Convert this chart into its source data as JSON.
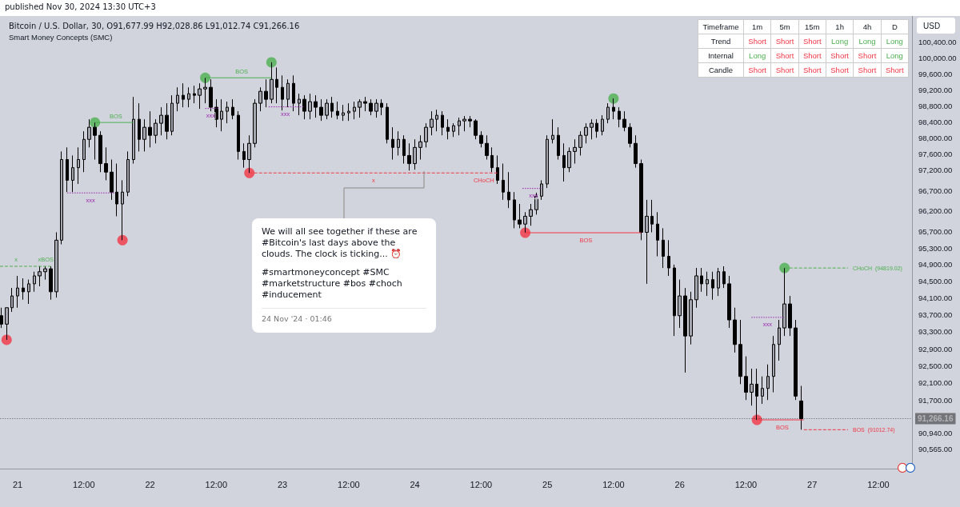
{
  "chart_data": [
    {
      "type": "candlestick",
      "title": "Bitcoin / U.S. Dollar, 30, O91,677.99 H92,028.86 L91,012.74 C91,266.16",
      "subtitle": "Smart Money Concepts (SMC)",
      "ylabel": "USD",
      "log": "y",
      "annotations": [
        "published Nov 30, 2024 13:30 UTC+3",
        {
          "text": "x",
          "x": "2024-11-20T23:42",
          "y": 94860
        },
        {
          "text": "xBOS",
          "x": "2024-11-21T05:06",
          "y": 94860
        },
        {
          "text": "BOS",
          "x": "2024-11-21T17:48",
          "y": 98380
        },
        {
          "text": "xxx",
          "x": "2024-11-21T13:12",
          "y": 96640
        },
        {
          "text": "BOS",
          "x": "2024-11-22T16:36",
          "y": 99500
        },
        {
          "text": "xxx",
          "x": "2024-11-22T11:00",
          "y": 98730
        },
        {
          "text": "xxx",
          "x": "2024-11-23T00:30",
          "y": 98770
        },
        {
          "text": "x",
          "x": "2024-11-23T16:30",
          "y": 97130
        },
        {
          "text": "CHoCH",
          "x": "2024-11-24T12:30",
          "y": 97130
        },
        {
          "text": "xxx",
          "x": "2024-11-24T21:30",
          "y": 96750
        },
        {
          "text": "BOS",
          "x": "2024-11-25T07:00",
          "y": 95670
        },
        {
          "text": "xxx",
          "x": "2024-11-26T15:54",
          "y": 93640
        },
        {
          "text": "BOS",
          "x": "2024-11-26T18:36",
          "y": 91240
        }
      ],
      "xlim": [
        "2024-11-20T20:48",
        "2024-11-27T18:06"
      ],
      "xticks": [
        {
          "value": "2024-11-21T00:00",
          "label": "21"
        },
        {
          "value": "2024-11-21T12:00",
          "label": "12:00"
        },
        {
          "value": "2024-11-22T00:00",
          "label": "22"
        },
        {
          "value": "2024-11-22T12:00",
          "label": "12:00"
        },
        {
          "value": "2024-11-23T00:00",
          "label": "23"
        },
        {
          "value": "2024-11-23T12:00",
          "label": "12:00"
        },
        {
          "value": "2024-11-24T00:00",
          "label": "24"
        },
        {
          "value": "2024-11-24T12:00",
          "label": "12:00"
        },
        {
          "value": "2024-11-25T00:00",
          "label": "25"
        },
        {
          "value": "2024-11-25T12:00",
          "label": "12:00"
        },
        {
          "value": "2024-11-26T00:00",
          "label": "26"
        },
        {
          "value": "2024-11-26T12:00",
          "label": "12:00"
        },
        {
          "value": "2024-11-27T00:00",
          "label": "27"
        },
        {
          "value": "2024-11-27T12:00",
          "label": "12:00"
        }
      ],
      "ylim": [
        90120,
        101070
      ],
      "yticks": [
        {
          "value": 100400,
          "label": "100,400.00"
        },
        {
          "value": 100000,
          "label": "100,000.00"
        },
        {
          "value": 99600,
          "label": "99,600.00"
        },
        {
          "value": 99200,
          "label": "99,200.00"
        },
        {
          "value": 98800,
          "label": "98,800.00"
        },
        {
          "value": 98400,
          "label": "98,400.00"
        },
        {
          "value": 98000,
          "label": "98,000.00"
        },
        {
          "value": 97600,
          "label": "97,600.00"
        },
        {
          "value": 97200,
          "label": "97,200.00"
        },
        {
          "value": 96700,
          "label": "96,700.00"
        },
        {
          "value": 96200,
          "label": "96,200.00"
        },
        {
          "value": 95700,
          "label": "95,700.00"
        },
        {
          "value": 95300,
          "label": "95,300.00"
        },
        {
          "value": 94900,
          "label": "94,900.00"
        },
        {
          "value": 94500,
          "label": "94,500.00"
        },
        {
          "value": 94100,
          "label": "94,100.00"
        },
        {
          "value": 93700,
          "label": "93,700.00"
        },
        {
          "value": 93300,
          "label": "93,300.00"
        },
        {
          "value": 92900,
          "label": "92,900.00"
        },
        {
          "value": 92500,
          "label": "92,500.00"
        },
        {
          "value": 92100,
          "label": "92,100.00"
        },
        {
          "value": 91700,
          "label": "91,700.00"
        },
        {
          "value": 90940,
          "label": "90,940.00"
        },
        {
          "value": 90565,
          "label": "90,565.00"
        }
      ],
      "ref_lines": [
        {
          "axis": "y",
          "value": 91266.16,
          "label": "91,266.16"
        }
      ],
      "x": [
        "2024-11-20T21:00",
        "2024-11-20T22:00",
        "2024-11-20T23:00",
        "2024-11-21T00:00",
        "2024-11-21T01:00",
        "2024-11-21T02:00",
        "2024-11-21T03:00",
        "2024-11-21T04:00",
        "2024-11-21T05:00",
        "2024-11-21T06:00",
        "2024-11-21T07:00",
        "2024-11-21T08:00",
        "2024-11-21T09:00",
        "2024-11-21T10:00",
        "2024-11-21T11:00",
        "2024-11-21T12:00",
        "2024-11-21T13:00",
        "2024-11-21T14:00",
        "2024-11-21T15:00",
        "2024-11-21T16:00",
        "2024-11-21T17:00",
        "2024-11-21T18:00",
        "2024-11-21T19:00",
        "2024-11-21T20:00",
        "2024-11-21T21:00",
        "2024-11-21T22:00",
        "2024-11-21T23:00",
        "2024-11-22T00:00",
        "2024-11-22T01:00",
        "2024-11-22T02:00",
        "2024-11-22T03:00",
        "2024-11-22T04:00",
        "2024-11-22T05:00",
        "2024-11-22T06:00",
        "2024-11-22T07:00",
        "2024-11-22T08:00",
        "2024-11-22T09:00",
        "2024-11-22T10:00",
        "2024-11-22T11:00",
        "2024-11-22T12:00",
        "2024-11-22T13:00",
        "2024-11-22T14:00",
        "2024-11-22T15:00",
        "2024-11-22T16:00",
        "2024-11-22T17:00",
        "2024-11-22T18:00",
        "2024-11-22T19:00",
        "2024-11-22T20:00",
        "2024-11-22T21:00",
        "2024-11-22T22:00",
        "2024-11-22T23:00",
        "2024-11-23T00:00",
        "2024-11-23T01:00",
        "2024-11-23T02:00",
        "2024-11-23T03:00",
        "2024-11-23T04:00",
        "2024-11-23T05:00",
        "2024-11-23T06:00",
        "2024-11-23T07:00",
        "2024-11-23T08:00",
        "2024-11-23T09:00",
        "2024-11-23T10:00",
        "2024-11-23T11:00",
        "2024-11-23T12:00",
        "2024-11-23T13:00",
        "2024-11-23T14:00",
        "2024-11-23T15:00",
        "2024-11-23T16:00",
        "2024-11-23T17:00",
        "2024-11-23T18:00",
        "2024-11-23T19:00",
        "2024-11-23T20:00",
        "2024-11-23T21:00",
        "2024-11-23T22:00",
        "2024-11-23T23:00",
        "2024-11-24T00:00",
        "2024-11-24T01:00",
        "2024-11-24T02:00",
        "2024-11-24T03:00",
        "2024-11-24T04:00",
        "2024-11-24T05:00",
        "2024-11-24T06:00",
        "2024-11-24T07:00",
        "2024-11-24T08:00",
        "2024-11-24T09:00",
        "2024-11-24T10:00",
        "2024-11-24T11:00",
        "2024-11-24T12:00",
        "2024-11-24T13:00",
        "2024-11-24T14:00",
        "2024-11-24T15:00",
        "2024-11-24T16:00",
        "2024-11-24T17:00",
        "2024-11-24T18:00",
        "2024-11-24T19:00",
        "2024-11-24T20:00",
        "2024-11-24T21:00",
        "2024-11-24T22:00",
        "2024-11-24T23:00",
        "2024-11-25T00:00",
        "2024-11-25T01:00",
        "2024-11-25T02:00",
        "2024-11-25T03:00",
        "2024-11-25T04:00",
        "2024-11-25T05:00",
        "2024-11-25T06:00",
        "2024-11-25T07:00",
        "2024-11-25T08:00",
        "2024-11-25T09:00",
        "2024-11-25T10:00",
        "2024-11-25T11:00",
        "2024-11-25T12:00",
        "2024-11-25T13:00",
        "2024-11-25T14:00",
        "2024-11-25T15:00",
        "2024-11-25T16:00",
        "2024-11-25T17:00",
        "2024-11-25T18:00",
        "2024-11-25T19:00",
        "2024-11-25T20:00",
        "2024-11-25T21:00",
        "2024-11-25T22:00",
        "2024-11-25T23:00",
        "2024-11-26T00:00",
        "2024-11-26T01:00",
        "2024-11-26T02:00",
        "2024-11-26T03:00",
        "2024-11-26T04:00",
        "2024-11-26T05:00",
        "2024-11-26T06:00",
        "2024-11-26T07:00",
        "2024-11-26T08:00",
        "2024-11-26T09:00",
        "2024-11-26T10:00",
        "2024-11-26T11:00",
        "2024-11-26T12:00",
        "2024-11-26T13:00",
        "2024-11-26T14:00",
        "2024-11-26T15:00",
        "2024-11-26T16:00",
        "2024-11-26T17:00",
        "2024-11-26T18:00",
        "2024-11-26T19:00",
        "2024-11-26T20:00",
        "2024-11-26T21:00",
        "2024-11-26T22:00"
      ],
      "ohlc": [
        [
          93680,
          93870,
          93390,
          93480
        ],
        [
          93480,
          93870,
          93110,
          93870
        ],
        [
          93870,
          94340,
          93770,
          94150
        ],
        [
          94150,
          94630,
          93870,
          94340
        ],
        [
          94340,
          94570,
          94060,
          94250
        ],
        [
          94250,
          94540,
          93960,
          94440
        ],
        [
          94440,
          94730,
          94250,
          94630
        ],
        [
          94630,
          94860,
          94380,
          94730
        ],
        [
          94730,
          94860,
          94540,
          94800
        ],
        [
          94800,
          94860,
          94060,
          94250
        ],
        [
          94250,
          95680,
          94110,
          95490
        ],
        [
          95490,
          97660,
          95390,
          97460
        ],
        [
          97460,
          97760,
          96660,
          96950
        ],
        [
          96950,
          97560,
          96660,
          97260
        ],
        [
          97260,
          97760,
          96860,
          97460
        ],
        [
          97460,
          98160,
          97150,
          97960
        ],
        [
          97960,
          98460,
          97760,
          98260
        ],
        [
          98260,
          98380,
          97460,
          98060
        ],
        [
          98060,
          98160,
          97150,
          97360
        ],
        [
          97360,
          97760,
          96950,
          97150
        ],
        [
          97150,
          97460,
          96470,
          96660
        ],
        [
          96660,
          97360,
          96070,
          96370
        ],
        [
          96370,
          96950,
          95490,
          96660
        ],
        [
          96660,
          97660,
          96560,
          97460
        ],
        [
          97460,
          99020,
          97360,
          98460
        ],
        [
          98460,
          98860,
          97660,
          97960
        ],
        [
          97960,
          98460,
          97660,
          98260
        ],
        [
          98260,
          98660,
          97760,
          98060
        ],
        [
          98060,
          98460,
          97860,
          98360
        ],
        [
          98360,
          98760,
          98060,
          98560
        ],
        [
          98560,
          98860,
          97960,
          98160
        ],
        [
          98160,
          99060,
          98060,
          98860
        ],
        [
          98860,
          99260,
          98660,
          99060
        ],
        [
          99060,
          99360,
          98760,
          98960
        ],
        [
          98960,
          99260,
          98760,
          99100
        ],
        [
          99100,
          99300,
          98860,
          99060
        ],
        [
          99060,
          99360,
          98720,
          99220
        ],
        [
          99220,
          99500,
          98860,
          99260
        ],
        [
          99260,
          99460,
          98660,
          98760
        ],
        [
          98760,
          98960,
          98260,
          98460
        ],
        [
          98460,
          98960,
          98160,
          98660
        ],
        [
          98660,
          98900,
          98360,
          98760
        ],
        [
          98760,
          98960,
          98460,
          98560
        ],
        [
          98560,
          98660,
          97460,
          97660
        ],
        [
          97660,
          97860,
          97260,
          97460
        ],
        [
          97460,
          98060,
          97130,
          97860
        ],
        [
          97860,
          98960,
          97760,
          98860
        ],
        [
          98860,
          99260,
          98660,
          99160
        ],
        [
          99160,
          99460,
          98760,
          98960
        ],
        [
          98960,
          99890,
          98860,
          99460
        ],
        [
          99460,
          99760,
          98860,
          99260
        ],
        [
          99260,
          99560,
          98660,
          98960
        ],
        [
          98960,
          99460,
          98760,
          99360
        ],
        [
          99360,
          99560,
          98660,
          98860
        ],
        [
          98860,
          99100,
          98560,
          98960
        ],
        [
          98960,
          99060,
          98460,
          98660
        ],
        [
          98660,
          99100,
          98460,
          98900
        ],
        [
          98900,
          99060,
          98500,
          98760
        ],
        [
          98760,
          98960,
          98420,
          98560
        ],
        [
          98560,
          98960,
          98460,
          98860
        ],
        [
          98860,
          99020,
          98500,
          98660
        ],
        [
          98660,
          98900,
          98460,
          98560
        ],
        [
          98560,
          98820,
          98420,
          98620
        ],
        [
          98620,
          98860,
          98420,
          98660
        ],
        [
          98660,
          98900,
          98460,
          98760
        ],
        [
          98760,
          98960,
          98500,
          98900
        ],
        [
          98900,
          99020,
          98660,
          98860
        ],
        [
          98860,
          98960,
          98560,
          98660
        ],
        [
          98660,
          98960,
          98500,
          98860
        ],
        [
          98860,
          98960,
          98560,
          98760
        ],
        [
          98760,
          98860,
          97860,
          97960
        ],
        [
          97960,
          98260,
          97460,
          97760
        ],
        [
          97760,
          98160,
          97560,
          97960
        ],
        [
          97960,
          98060,
          97360,
          97560
        ],
        [
          97560,
          97860,
          97190,
          97360
        ],
        [
          97360,
          97960,
          97210,
          97760
        ],
        [
          97760,
          98060,
          97460,
          97900
        ],
        [
          97900,
          98360,
          97760,
          98260
        ],
        [
          98260,
          98660,
          98060,
          98460
        ],
        [
          98460,
          98700,
          98160,
          98560
        ],
        [
          98560,
          98660,
          98060,
          98260
        ],
        [
          98260,
          98460,
          97960,
          98160
        ],
        [
          98160,
          98360,
          98020,
          98300
        ],
        [
          98300,
          98500,
          98060,
          98420
        ],
        [
          98420,
          98540,
          98160,
          98460
        ],
        [
          98460,
          98540,
          98260,
          98420
        ],
        [
          98420,
          98460,
          97960,
          98060
        ],
        [
          98060,
          98160,
          97760,
          97860
        ],
        [
          97860,
          98060,
          97460,
          97560
        ],
        [
          97560,
          97760,
          97150,
          97260
        ],
        [
          97260,
          97560,
          96860,
          96950
        ],
        [
          96950,
          97360,
          96470,
          96660
        ],
        [
          96660,
          97150,
          96270,
          96470
        ],
        [
          96470,
          96660,
          95780,
          95980
        ],
        [
          95980,
          96370,
          95780,
          95880
        ],
        [
          95880,
          96170,
          95670,
          96070
        ],
        [
          96070,
          96370,
          95840,
          96230
        ],
        [
          96230,
          96660,
          96110,
          96560
        ],
        [
          96560,
          96950,
          96470,
          96860
        ],
        [
          96860,
          98060,
          96760,
          97960
        ],
        [
          97960,
          98460,
          97860,
          98060
        ],
        [
          98060,
          98260,
          97460,
          97560
        ],
        [
          97560,
          97860,
          96920,
          97260
        ],
        [
          97260,
          97760,
          97150,
          97660
        ],
        [
          97660,
          97960,
          97360,
          97760
        ],
        [
          97760,
          98160,
          97560,
          98060
        ],
        [
          98060,
          98360,
          97860,
          98260
        ],
        [
          98260,
          98460,
          97960,
          98360
        ],
        [
          98360,
          98460,
          98000,
          98160
        ],
        [
          98160,
          98560,
          98060,
          98460
        ],
        [
          98460,
          98860,
          98360,
          98760
        ],
        [
          98760,
          98980,
          98460,
          98660
        ],
        [
          98660,
          98760,
          98260,
          98460
        ],
        [
          98460,
          98660,
          98160,
          98260
        ],
        [
          98260,
          98360,
          97760,
          97860
        ],
        [
          97860,
          98060,
          97260,
          97360
        ],
        [
          97360,
          97460,
          95490,
          95680
        ],
        [
          95680,
          96470,
          94440,
          96070
        ],
        [
          96070,
          96470,
          95680,
          95880
        ],
        [
          95880,
          96170,
          95100,
          95490
        ],
        [
          95490,
          95780,
          94820,
          95100
        ],
        [
          95100,
          95490,
          94630,
          94820
        ],
        [
          94820,
          94900,
          93200,
          93680
        ],
        [
          93680,
          94540,
          93390,
          94150
        ],
        [
          94150,
          94340,
          92340,
          93200
        ],
        [
          93200,
          94250,
          93000,
          94060
        ],
        [
          94060,
          94820,
          93870,
          94630
        ],
        [
          94630,
          94820,
          94250,
          94440
        ],
        [
          94440,
          94730,
          94150,
          94540
        ],
        [
          94540,
          94730,
          94060,
          94340
        ],
        [
          94340,
          94820,
          94150,
          94730
        ],
        [
          94730,
          94860,
          94340,
          94440
        ],
        [
          94440,
          94630,
          93390,
          93580
        ],
        [
          93580,
          93870,
          92810,
          93000
        ],
        [
          93000,
          93580,
          92070,
          92250
        ],
        [
          92250,
          92720,
          91700,
          91880
        ],
        [
          91880,
          92430,
          91570,
          92070
        ],
        [
          92070,
          92430,
          91240,
          91790
        ],
        [
          91790,
          92250,
          91610,
          91970
        ],
        [
          91970,
          92530,
          91700,
          92250
        ],
        [
          92250,
          93200,
          91880,
          93000
        ],
        [
          93000,
          93580,
          92620,
          93390
        ],
        [
          93390,
          94819.02,
          93200,
          93960
        ],
        [
          93960,
          94150,
          93200,
          93390
        ],
        [
          93390,
          93580,
          91700,
          91790
        ],
        [
          91677.99,
          92028.86,
          91012.74,
          91266.16
        ]
      ],
      "series": [
        {
          "type": "scatter",
          "marker": "circle",
          "color": "#4caf50",
          "x": [
            "2024-11-21T14:00",
            "2024-11-22T10:00",
            "2024-11-22T22:00",
            "2024-11-25T12:00",
            "2024-11-26T19:00"
          ],
          "values": [
            98380,
            99500,
            99890,
            98980,
            94819.02
          ]
        },
        {
          "type": "scatter",
          "marker": "circle",
          "color": "#f23645",
          "x": [
            "2024-11-20T22:00",
            "2024-11-21T19:00",
            "2024-11-22T18:00",
            "2024-11-24T20:00",
            "2024-11-26T14:00"
          ],
          "values": [
            93110,
            95490,
            97130,
            95670,
            91240
          ]
        },
        {
          "type": "line",
          "marker": "none",
          "line_style": "dashed",
          "color": "#4caf50",
          "x": [
            "2024-11-20T20:48",
            "2024-11-21T06:00"
          ],
          "values": [
            94860,
            94860
          ]
        },
        {
          "type": "line",
          "marker": "none",
          "line_style": "solid",
          "color": "#4caf50",
          "x": [
            "2024-11-21T14:00",
            "2024-11-21T21:00"
          ],
          "values": [
            98380,
            98380
          ]
        },
        {
          "type": "line",
          "marker": "none",
          "line_style": "dotted",
          "color": "#9c27b0",
          "x": [
            "2024-11-21T09:00",
            "2024-11-21T17:30"
          ],
          "values": [
            96640,
            96640
          ]
        },
        {
          "type": "line",
          "marker": "none",
          "line_style": "solid",
          "color": "#4caf50",
          "x": [
            "2024-11-22T10:00",
            "2024-11-22T22:00"
          ],
          "values": [
            99500,
            99500
          ]
        },
        {
          "type": "line",
          "marker": "none",
          "line_style": "dotted",
          "color": "#9c27b0",
          "x": [
            "2024-11-22T10:00",
            "2024-11-22T12:30"
          ],
          "values": [
            98730,
            98730
          ]
        },
        {
          "type": "line",
          "marker": "none",
          "line_style": "dotted",
          "color": "#9c27b0",
          "x": [
            "2024-11-22T21:30",
            "2024-11-23T04:00"
          ],
          "values": [
            98770,
            98770
          ]
        },
        {
          "type": "line",
          "marker": "none",
          "line_style": "dashed",
          "color": "#f23645",
          "x": [
            "2024-11-22T18:00",
            "2024-11-24T15:00"
          ],
          "values": [
            97130,
            97130
          ]
        },
        {
          "type": "line",
          "marker": "none",
          "line_style": "dotted",
          "color": "#9c27b0",
          "x": [
            "2024-11-24T19:30",
            "2024-11-24T23:00"
          ],
          "values": [
            96750,
            96750
          ]
        },
        {
          "type": "line",
          "marker": "none",
          "line_style": "solid",
          "color": "#f23645",
          "x": [
            "2024-11-24T20:00",
            "2024-11-25T17:00"
          ],
          "values": [
            95670,
            95670
          ]
        },
        {
          "type": "line",
          "marker": "none",
          "line_style": "dotted",
          "color": "#9c27b0",
          "x": [
            "2024-11-26T13:00",
            "2024-11-26T19:00"
          ],
          "values": [
            93640,
            93640
          ]
        },
        {
          "type": "line",
          "marker": "none",
          "line_style": "solid",
          "color": "#f23645",
          "x": [
            "2024-11-26T14:00",
            "2024-11-26T22:30"
          ],
          "values": [
            91240,
            91240
          ]
        },
        {
          "type": "line",
          "marker": "none",
          "line_style": "dashed",
          "color": "#4caf50",
          "name": "CHoCH  (94819.02)",
          "x": [
            "2024-11-26T19:00",
            "2024-11-27T06:30"
          ],
          "values": [
            94819.02,
            94819.02
          ]
        },
        {
          "type": "line",
          "marker": "none",
          "line_style": "dashed",
          "color": "#f23645",
          "name": "BOS  (91012.74)",
          "x": [
            "2024-11-26T22:30",
            "2024-11-27T06:30"
          ],
          "values": [
            91012.74,
            91012.74
          ]
        }
      ]
    },
    {
      "type": "other",
      "ylabel": "Timeframe",
      "categories": [
        "1m",
        "5m",
        "15m",
        "1h",
        "4h",
        "D"
      ],
      "y_categories": [
        "Trend",
        "Internal",
        "Candle"
      ],
      "cell_labels": [
        [
          "Short",
          "Short",
          "Short",
          "Long",
          "Long",
          "Long"
        ],
        [
          "Long",
          "Short",
          "Short",
          "Short",
          "Short",
          "Long"
        ],
        [
          "Short",
          "Short",
          "Short",
          "Short",
          "Short",
          "Short"
        ]
      ],
      "colors": [
        [
          "#f23645",
          "#f23645",
          "#f23645",
          "#4caf50",
          "#4caf50",
          "#4caf50"
        ],
        [
          "#4caf50",
          "#f23645",
          "#f23645",
          "#f23645",
          "#f23645",
          "#4caf50"
        ],
        [
          "#f23645",
          "#f23645",
          "#f23645",
          "#f23645",
          "#f23645",
          "#f23645"
        ]
      ]
    },
    {
      "type": "other",
      "annotations": [
        "We will all see together if these are #Bitcoin's last days above the clouds. The clock is ticking... ⏰",
        "#smartmoneyconcept #SMC #marketstructure #bos #choch #inducement",
        "24 Nov '24 · 01:46"
      ]
    }
  ]
}
